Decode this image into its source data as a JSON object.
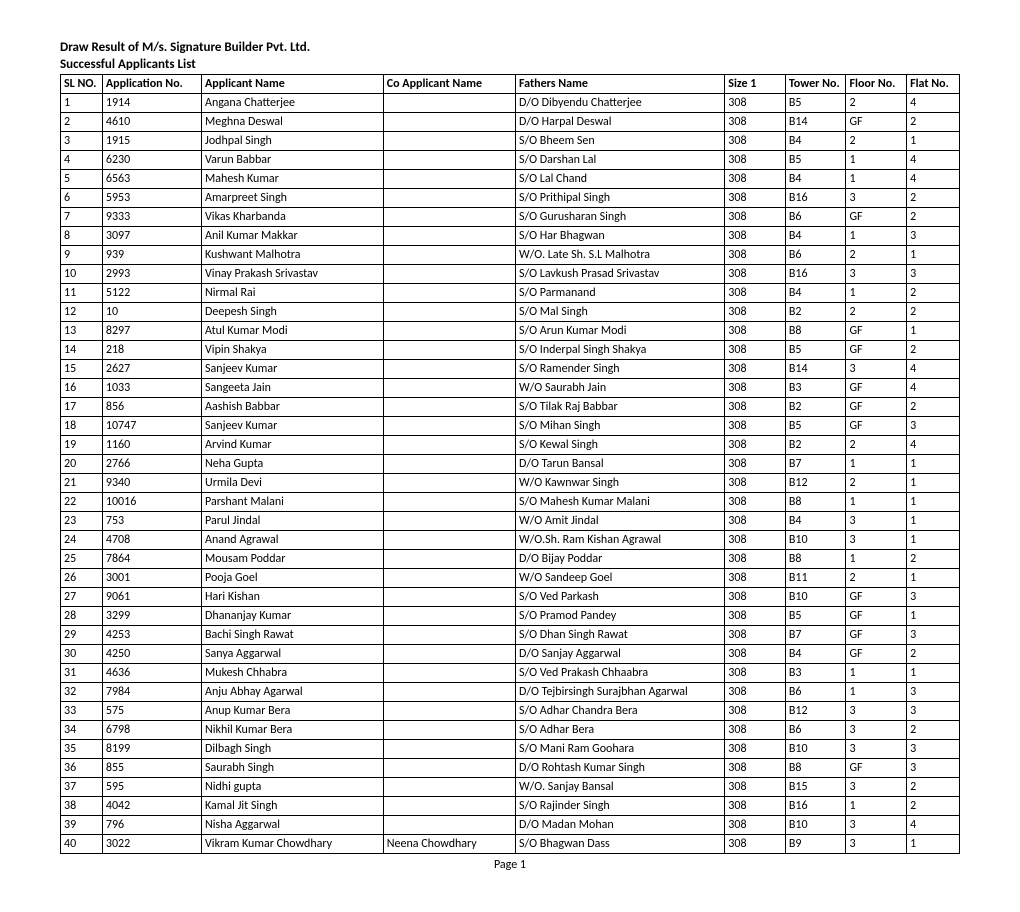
{
  "title": "Draw Result of M/s. Signature Builder Pvt. Ltd.",
  "subtitle": "Successful Applicants List",
  "footer": "Page 1",
  "columns": [
    "SL NO.",
    "Application No.",
    "Applicant Name",
    "Co Applicant Name",
    "Fathers Name",
    "Size 1",
    "Tower No.",
    "Floor No.",
    "Flat No."
  ],
  "rows": [
    [
      "1",
      "1914",
      "Angana Chatterjee",
      "",
      "D/O Dibyendu Chatterjee",
      "308",
      "B5",
      "2",
      "4"
    ],
    [
      "2",
      "4610",
      "Meghna Deswal",
      "",
      "D/O Harpal Deswal",
      "308",
      "B14",
      "GF",
      "2"
    ],
    [
      "3",
      "1915",
      "Jodhpal Singh",
      "",
      "S/O Bheem Sen",
      "308",
      "B4",
      "2",
      "1"
    ],
    [
      "4",
      "6230",
      "Varun Babbar",
      "",
      "S/O Darshan Lal",
      "308",
      "B5",
      "1",
      "4"
    ],
    [
      "5",
      "6563",
      "Mahesh Kumar",
      "",
      "S/O Lal Chand",
      "308",
      "B4",
      "1",
      "4"
    ],
    [
      "6",
      "5953",
      "Amarpreet Singh",
      "",
      "S/O Prithipal Singh",
      "308",
      "B16",
      "3",
      "2"
    ],
    [
      "7",
      "9333",
      "Vikas Kharbanda",
      "",
      "S/O Gurusharan Singh",
      "308",
      "B6",
      "GF",
      "2"
    ],
    [
      "8",
      "3097",
      "Anil Kumar Makkar",
      "",
      "S/O Har Bhagwan",
      "308",
      "B4",
      "1",
      "3"
    ],
    [
      "9",
      "939",
      "Kushwant Malhotra",
      "",
      "W/O. Late Sh. S.L Malhotra",
      "308",
      "B6",
      "2",
      "1"
    ],
    [
      "10",
      "2993",
      "Vinay Prakash Srivastav",
      "",
      "S/O Lavkush Prasad Srivastav",
      "308",
      "B16",
      "3",
      "3"
    ],
    [
      "11",
      "5122",
      "Nirmal Rai",
      "",
      "S/O Parmanand",
      "308",
      "B4",
      "1",
      "2"
    ],
    [
      "12",
      "10",
      "Deepesh Singh",
      "",
      "S/O Mal Singh",
      "308",
      "B2",
      "2",
      "2"
    ],
    [
      "13",
      "8297",
      "Atul Kumar Modi",
      "",
      "S/O Arun Kumar Modi",
      "308",
      "B8",
      "GF",
      "1"
    ],
    [
      "14",
      "218",
      "Vipin Shakya",
      "",
      "S/O Inderpal Singh Shakya",
      "308",
      "B5",
      "GF",
      "2"
    ],
    [
      "15",
      "2627",
      "Sanjeev Kumar",
      "",
      "S/O Ramender Singh",
      "308",
      "B14",
      "3",
      "4"
    ],
    [
      "16",
      "1033",
      "Sangeeta Jain",
      "",
      "W/O Saurabh Jain",
      "308",
      "B3",
      "GF",
      "4"
    ],
    [
      "17",
      "856",
      "Aashish Babbar",
      "",
      "S/O Tilak Raj Babbar",
      "308",
      "B2",
      "GF",
      "2"
    ],
    [
      "18",
      "10747",
      "Sanjeev Kumar",
      "",
      "S/O Mihan Singh",
      "308",
      "B5",
      "GF",
      "3"
    ],
    [
      "19",
      "1160",
      "Arvind Kumar",
      "",
      "S/O Kewal Singh",
      "308",
      "B2",
      "2",
      "4"
    ],
    [
      "20",
      "2766",
      "Neha Gupta",
      "",
      "D/O Tarun Bansal",
      "308",
      "B7",
      "1",
      "1"
    ],
    [
      "21",
      "9340",
      "Urmila Devi",
      "",
      "W/O Kawnwar Singh",
      "308",
      "B12",
      "2",
      "1"
    ],
    [
      "22",
      "10016",
      "Parshant Malani",
      "",
      "S/O Mahesh Kumar Malani",
      "308",
      "B8",
      "1",
      "1"
    ],
    [
      "23",
      "753",
      "Parul Jindal",
      "",
      "W/O Amit Jindal",
      "308",
      "B4",
      "3",
      "1"
    ],
    [
      "24",
      "4708",
      "Anand Agrawal",
      "",
      "W/O.Sh. Ram Kishan Agrawal",
      "308",
      "B10",
      "3",
      "1"
    ],
    [
      "25",
      "7864",
      "Mousam Poddar",
      "",
      "D/O Bijay Poddar",
      "308",
      "B8",
      "1",
      "2"
    ],
    [
      "26",
      "3001",
      "Pooja Goel",
      "",
      "W/O Sandeep Goel",
      "308",
      "B11",
      "2",
      "1"
    ],
    [
      "27",
      "9061",
      "Hari Kishan",
      "",
      "S/O Ved Parkash",
      "308",
      "B10",
      "GF",
      "3"
    ],
    [
      "28",
      "3299",
      "Dhananjay Kumar",
      "",
      "S/O Pramod Pandey",
      "308",
      "B5",
      "GF",
      "1"
    ],
    [
      "29",
      "4253",
      "Bachi Singh Rawat",
      "",
      "S/O Dhan Singh Rawat",
      "308",
      "B7",
      "GF",
      "3"
    ],
    [
      "30",
      "4250",
      "Sanya Aggarwal",
      "",
      "D/O Sanjay Aggarwal",
      "308",
      "B4",
      "GF",
      "2"
    ],
    [
      "31",
      "4636",
      "Mukesh Chhabra",
      "",
      "S/O Ved Prakash Chhaabra",
      "308",
      "B3",
      "1",
      "1"
    ],
    [
      "32",
      "7984",
      "Anju Abhay Agarwal",
      "",
      "D/O Tejbirsingh Surajbhan Agarwal",
      "308",
      "B6",
      "1",
      "3"
    ],
    [
      "33",
      "575",
      "Anup Kumar Bera",
      "",
      "S/O Adhar Chandra Bera",
      "308",
      "B12",
      "3",
      "3"
    ],
    [
      "34",
      "6798",
      "Nikhil Kumar Bera",
      "",
      "S/O Adhar Bera",
      "308",
      "B6",
      "3",
      "2"
    ],
    [
      "35",
      "8199",
      "Dilbagh Singh",
      "",
      "S/O Mani Ram Goohara",
      "308",
      "B10",
      "3",
      "3"
    ],
    [
      "36",
      "855",
      "Saurabh Singh",
      "",
      "D/O Rohtash Kumar Singh",
      "308",
      "B8",
      "GF",
      "3"
    ],
    [
      "37",
      "595",
      "Nidhi gupta",
      "",
      "W/O. Sanjay Bansal",
      "308",
      "B15",
      "3",
      "2"
    ],
    [
      "38",
      "4042",
      "Kamal Jit Singh",
      "",
      "S/O Rajinder Singh",
      "308",
      "B16",
      "1",
      "2"
    ],
    [
      "39",
      "796",
      "Nisha Aggarwal",
      "",
      "D/O Madan Mohan",
      "308",
      "B10",
      "3",
      "4"
    ],
    [
      "40",
      "3022",
      "Vikram Kumar Chowdhary",
      "Neena Chowdhary",
      "S/O Bhagwan Dass",
      "308",
      "B9",
      "3",
      "1"
    ]
  ]
}
